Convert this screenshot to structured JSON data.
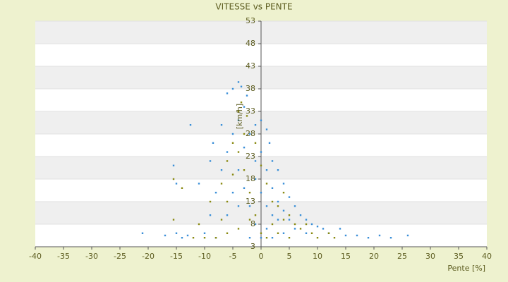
{
  "chart_data": {
    "type": "scatter",
    "title": "VITESSE vs PENTE",
    "x_label": "Pente [%]",
    "y_label": "[km/h]",
    "xlim": [
      -40,
      40
    ],
    "xticks": [
      -40,
      -35,
      -30,
      -25,
      -20,
      -15,
      -10,
      -5,
      0,
      5,
      10,
      15,
      20,
      25,
      30,
      35,
      40
    ],
    "ylim": [
      3,
      53
    ],
    "yticks": [
      3,
      8,
      13,
      18,
      23,
      28,
      33,
      38,
      43,
      48,
      53
    ],
    "grid": true,
    "series": [
      {
        "color": "#3a8fd8",
        "x": [
          -21,
          -17,
          -15,
          -14,
          -13,
          -15.5,
          -15,
          -12.5,
          -11,
          -9,
          -8.5,
          -7,
          -6,
          -5,
          -4,
          -3.5,
          -2.5,
          -3,
          -4,
          -5,
          -6,
          -7,
          -8,
          -9,
          -10,
          -5,
          -4,
          -3,
          -2,
          -1,
          0,
          1,
          1.5,
          2,
          3,
          4,
          5,
          6,
          7,
          8,
          9,
          10,
          11,
          12,
          14,
          15,
          17,
          19,
          21,
          23,
          26,
          -1,
          0,
          1,
          2,
          3,
          -2,
          -1,
          0,
          2,
          4,
          6,
          8,
          -6,
          -4,
          -3,
          -1,
          0,
          1,
          2,
          3,
          4,
          5,
          1,
          -2,
          -8
        ],
        "values": [
          6,
          5.5,
          6,
          5,
          5.5,
          21,
          17,
          30,
          17,
          22,
          26,
          30,
          37,
          38,
          39.5,
          38.5,
          36.5,
          34,
          31,
          28,
          24,
          20,
          15,
          10,
          6,
          15,
          20,
          25,
          28,
          30,
          31,
          29,
          26,
          22,
          20,
          17,
          14,
          12,
          10,
          9,
          8,
          7.5,
          7,
          6,
          7,
          5.5,
          5.5,
          5,
          5.5,
          5,
          5.5,
          18,
          15,
          12,
          10,
          9,
          12,
          8,
          5,
          5,
          6,
          7,
          6,
          10,
          12,
          16,
          22,
          24,
          20,
          16,
          13,
          11,
          9,
          7,
          5,
          5
        ]
      },
      {
        "color": "#8a8a12",
        "x": [
          -15.5,
          -15.5,
          -14,
          -11,
          -10,
          -8,
          -9,
          -7,
          -6,
          -5,
          -4,
          -3.5,
          -2.5,
          -3,
          -4,
          -5,
          -6,
          -7,
          -3,
          -2,
          -1,
          0,
          1,
          2,
          3,
          4,
          5,
          6,
          7,
          9,
          10,
          13,
          -1,
          0,
          1,
          2,
          -2,
          -4,
          -6,
          3,
          5,
          8,
          -12,
          12,
          4
        ],
        "values": [
          18,
          9,
          16,
          8,
          5,
          5,
          13,
          17,
          22,
          26,
          33,
          35,
          32,
          28,
          24,
          19,
          13,
          9,
          20,
          15,
          10,
          6,
          5,
          8,
          12,
          15,
          10,
          8,
          7,
          6,
          5,
          5,
          26,
          21,
          17,
          13,
          9,
          7,
          6,
          6,
          5,
          8,
          5,
          6,
          9
        ]
      }
    ]
  }
}
